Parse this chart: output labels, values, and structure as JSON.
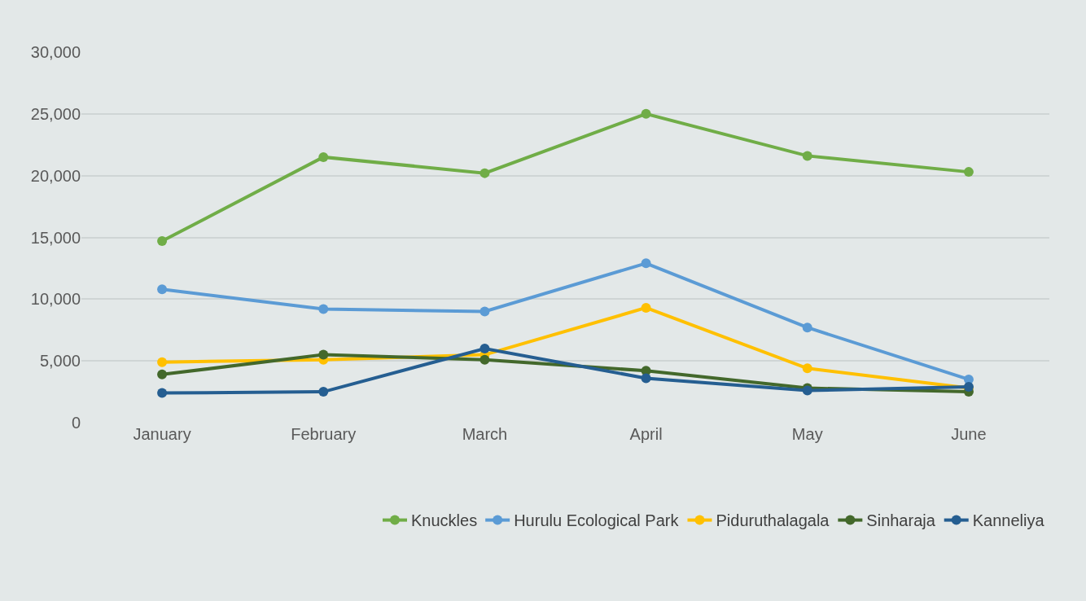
{
  "chart_data": {
    "type": "line",
    "categories": [
      "January",
      "February",
      "March",
      "April",
      "May",
      "June"
    ],
    "series": [
      {
        "name": "Knuckles",
        "color": "#70ad47",
        "values": [
          14700,
          21500,
          20200,
          25000,
          21600,
          20300
        ]
      },
      {
        "name": "Hurulu Ecological Park",
        "color": "#5b9bd5",
        "values": [
          10800,
          9200,
          9000,
          12900,
          7700,
          3500
        ]
      },
      {
        "name": "Piduruthalagala",
        "color": "#ffc000",
        "values": [
          4900,
          5100,
          5500,
          9300,
          4400,
          2800
        ]
      },
      {
        "name": "Sinharaja",
        "color": "#43682b",
        "values": [
          3900,
          5500,
          5100,
          4200,
          2800,
          2500
        ]
      },
      {
        "name": "Kanneliya",
        "color": "#255e91",
        "values": [
          2400,
          2500,
          6000,
          3600,
          2600,
          2900
        ]
      }
    ],
    "ylim": [
      0,
      30000
    ],
    "yticks": [
      {
        "value": 0,
        "label": "0"
      },
      {
        "value": 5000,
        "label": "5,000"
      },
      {
        "value": 10000,
        "label": "10,000"
      },
      {
        "value": 15000,
        "label": "15,000"
      },
      {
        "value": 20000,
        "label": "20,000"
      },
      {
        "value": 25000,
        "label": "25,000"
      },
      {
        "value": 30000,
        "label": "30,000"
      }
    ],
    "grid": "y",
    "legend": "bottom",
    "marker": "circle",
    "line_style": "solid"
  }
}
